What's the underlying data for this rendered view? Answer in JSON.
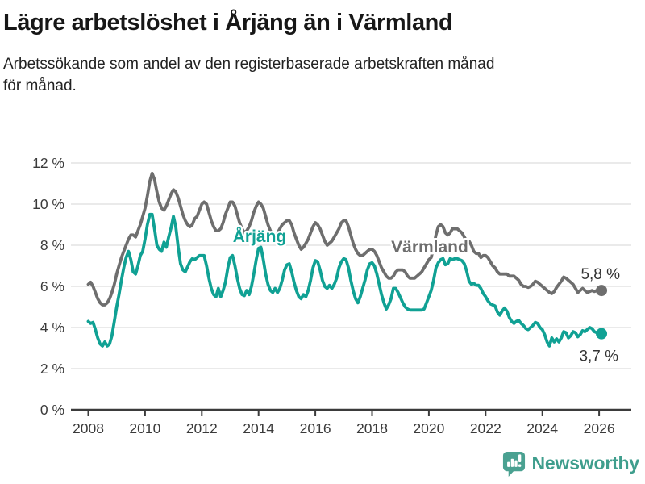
{
  "header": {
    "title": "Lägre arbetslöshet i Årjäng än i Värmland",
    "subtitle": "Arbetssökande som andel av den registerbaserade arbetskraften månad\nför månad."
  },
  "chart_data": {
    "type": "line",
    "title": "Lägre arbetslöshet i Årjäng än i Värmland",
    "subtitle": "Arbetssökande som andel av den registerbaserade arbetskraften månad för månad.",
    "x_unit": "month",
    "x_start": "2008-01",
    "x_end": "2026-02",
    "x_tick_years": [
      2008,
      2010,
      2012,
      2014,
      2016,
      2018,
      2020,
      2022,
      2024,
      2026
    ],
    "ylim": [
      0,
      12
    ],
    "y_ticks": [
      0,
      2,
      4,
      6,
      8,
      10,
      12
    ],
    "y_tick_suffix": " %",
    "grid": true,
    "legend": "inline-labels",
    "colors": {
      "arjang": "#10a194",
      "varmland": "#6e6e6e",
      "grid": "#e4e4e4",
      "axis": "#3b3b3b",
      "tick_text": "#3a3a3a",
      "end_label_text": "#333333"
    },
    "series": [
      {
        "name": "Värmland",
        "color": "#6e6e6e",
        "end_label": "5,8 %",
        "last_value": 5.8,
        "values": [
          6.1,
          6.2,
          6.0,
          5.7,
          5.4,
          5.2,
          5.1,
          5.1,
          5.2,
          5.4,
          5.7,
          6.1,
          6.6,
          7.0,
          7.4,
          7.7,
          8.0,
          8.3,
          8.5,
          8.5,
          8.4,
          8.7,
          9.0,
          9.4,
          9.8,
          10.4,
          11.1,
          11.5,
          11.2,
          10.6,
          10.1,
          9.8,
          9.7,
          9.9,
          10.2,
          10.5,
          10.7,
          10.6,
          10.3,
          9.9,
          9.5,
          9.2,
          9.0,
          8.9,
          9.0,
          9.3,
          9.4,
          9.7,
          10.0,
          10.1,
          10.0,
          9.6,
          9.2,
          8.9,
          8.7,
          8.7,
          8.8,
          9.1,
          9.5,
          9.8,
          10.1,
          10.1,
          9.9,
          9.5,
          9.1,
          8.8,
          8.6,
          8.7,
          8.9,
          9.2,
          9.6,
          9.9,
          10.1,
          10.0,
          9.8,
          9.4,
          9.0,
          8.7,
          8.5,
          8.5,
          8.6,
          8.8,
          9.0,
          9.1,
          9.2,
          9.2,
          9.0,
          8.6,
          8.3,
          8.0,
          7.8,
          7.9,
          8.1,
          8.3,
          8.6,
          8.9,
          9.1,
          9.0,
          8.8,
          8.5,
          8.2,
          8.0,
          8.1,
          8.2,
          8.4,
          8.6,
          8.8,
          9.1,
          9.2,
          9.2,
          8.9,
          8.5,
          8.1,
          7.8,
          7.6,
          7.5,
          7.5,
          7.6,
          7.7,
          7.8,
          7.8,
          7.7,
          7.5,
          7.2,
          6.9,
          6.7,
          6.5,
          6.4,
          6.4,
          6.5,
          6.7,
          6.8,
          6.8,
          6.8,
          6.7,
          6.5,
          6.4,
          6.4,
          6.4,
          6.5,
          6.6,
          6.7,
          6.9,
          7.1,
          7.3,
          7.4,
          7.9,
          8.5,
          8.9,
          9.0,
          8.9,
          8.6,
          8.5,
          8.6,
          8.8,
          8.8,
          8.8,
          8.7,
          8.6,
          8.4,
          8.2,
          8.2,
          8.0,
          7.7,
          7.6,
          7.6,
          7.4,
          7.5,
          7.5,
          7.4,
          7.2,
          7.0,
          6.9,
          6.7,
          6.6,
          6.6,
          6.6,
          6.6,
          6.5,
          6.5,
          6.5,
          6.4,
          6.3,
          6.1,
          6.0,
          6.0,
          5.95,
          6.0,
          6.1,
          6.25,
          6.2,
          6.1,
          6.0,
          5.9,
          5.8,
          5.7,
          5.65,
          5.75,
          5.95,
          6.1,
          6.25,
          6.45,
          6.4,
          6.3,
          6.2,
          6.1,
          5.9,
          5.7,
          5.8,
          5.9,
          5.8,
          5.7,
          5.75,
          5.8,
          5.75,
          5.8,
          5.8,
          5.8
        ]
      },
      {
        "name": "Årjäng",
        "color": "#10a194",
        "end_label": "3,7 %",
        "last_value": 3.7,
        "values": [
          4.3,
          4.2,
          4.25,
          3.9,
          3.5,
          3.2,
          3.1,
          3.3,
          3.1,
          3.2,
          3.6,
          4.3,
          5.0,
          5.6,
          6.3,
          6.9,
          7.4,
          7.7,
          7.3,
          6.7,
          6.6,
          7.0,
          7.5,
          7.7,
          8.3,
          9.0,
          9.5,
          9.5,
          8.8,
          8.0,
          7.8,
          7.7,
          8.15,
          7.9,
          8.4,
          8.85,
          9.4,
          8.9,
          7.9,
          7.1,
          6.8,
          6.7,
          6.95,
          7.2,
          7.35,
          7.3,
          7.4,
          7.5,
          7.5,
          7.5,
          7.0,
          6.4,
          5.9,
          5.6,
          5.5,
          5.9,
          5.5,
          5.8,
          6.2,
          6.9,
          7.4,
          7.5,
          7.0,
          6.4,
          5.9,
          5.6,
          5.55,
          5.8,
          5.6,
          6.0,
          6.6,
          7.3,
          7.85,
          7.9,
          7.3,
          6.6,
          6.1,
          5.8,
          5.7,
          5.9,
          5.7,
          5.9,
          6.3,
          6.8,
          7.05,
          7.1,
          6.7,
          6.2,
          5.8,
          5.5,
          5.4,
          5.6,
          5.5,
          5.8,
          6.3,
          6.9,
          7.25,
          7.2,
          6.8,
          6.3,
          6.0,
          5.9,
          6.05,
          5.9,
          6.1,
          6.4,
          6.9,
          7.2,
          7.35,
          7.3,
          6.9,
          6.3,
          5.8,
          5.4,
          5.2,
          5.5,
          5.9,
          6.3,
          6.8,
          7.1,
          7.15,
          7.0,
          6.6,
          6.1,
          5.6,
          5.2,
          4.9,
          5.1,
          5.4,
          5.9,
          5.9,
          5.7,
          5.45,
          5.2,
          5.0,
          4.9,
          4.85,
          4.85,
          4.85,
          4.85,
          4.85,
          4.85,
          4.9,
          5.2,
          5.5,
          5.8,
          6.3,
          6.9,
          7.15,
          7.3,
          7.35,
          7.05,
          7.1,
          7.35,
          7.3,
          7.35,
          7.35,
          7.3,
          7.25,
          7.1,
          6.75,
          6.25,
          6.1,
          6.15,
          6.05,
          6.05,
          5.9,
          5.65,
          5.5,
          5.3,
          5.15,
          5.1,
          5.05,
          4.75,
          4.6,
          4.8,
          4.95,
          4.8,
          4.5,
          4.3,
          4.2,
          4.3,
          4.35,
          4.2,
          4.1,
          3.95,
          3.9,
          4.0,
          4.1,
          4.25,
          4.2,
          4.0,
          3.9,
          3.65,
          3.3,
          3.1,
          3.5,
          3.3,
          3.45,
          3.3,
          3.5,
          3.8,
          3.75,
          3.5,
          3.6,
          3.8,
          3.75,
          3.55,
          3.65,
          3.85,
          3.8,
          3.9,
          4.0,
          3.95,
          3.8,
          3.75,
          3.8,
          3.7
        ]
      }
    ]
  },
  "footer": {
    "brand": "Newsworthy",
    "brand_color": "#3f9e8d",
    "icon": "newsworthy-bars-pin-icon",
    "icon_color": "#4aa191"
  }
}
